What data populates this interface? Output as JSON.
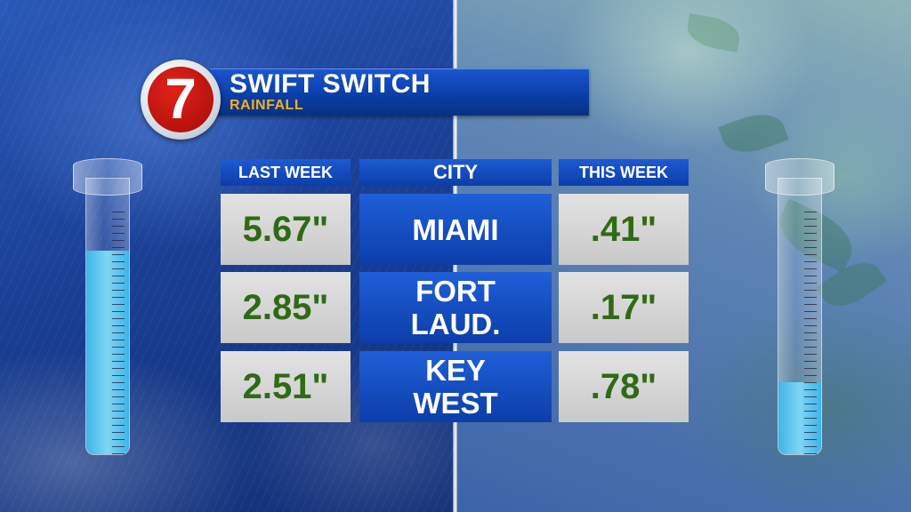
{
  "header": {
    "logo_text": "7",
    "title": "SWIFT SWITCH",
    "subtitle": "RAINFALL"
  },
  "table": {
    "columns": [
      "LAST WEEK",
      "CITY",
      "THIS WEEK"
    ],
    "rows": [
      {
        "last_week": "5.67\"",
        "city_line1": "MIAMI",
        "city_line2": "",
        "this_week": ".41\""
      },
      {
        "last_week": "2.85\"",
        "city_line1": "FORT",
        "city_line2": "LAUD.",
        "this_week": ".17\""
      },
      {
        "last_week": "2.51\"",
        "city_line1": "KEY",
        "city_line2": "WEST",
        "this_week": ".78\""
      }
    ]
  },
  "gauges": {
    "left_fill_fraction": 0.74,
    "right_fill_fraction": 0.26
  },
  "colors": {
    "value_green": "#2f6a14",
    "header_blue": "#0c3ea9",
    "subtitle_gold": "#f3b020",
    "logo_red": "#c8160f"
  }
}
